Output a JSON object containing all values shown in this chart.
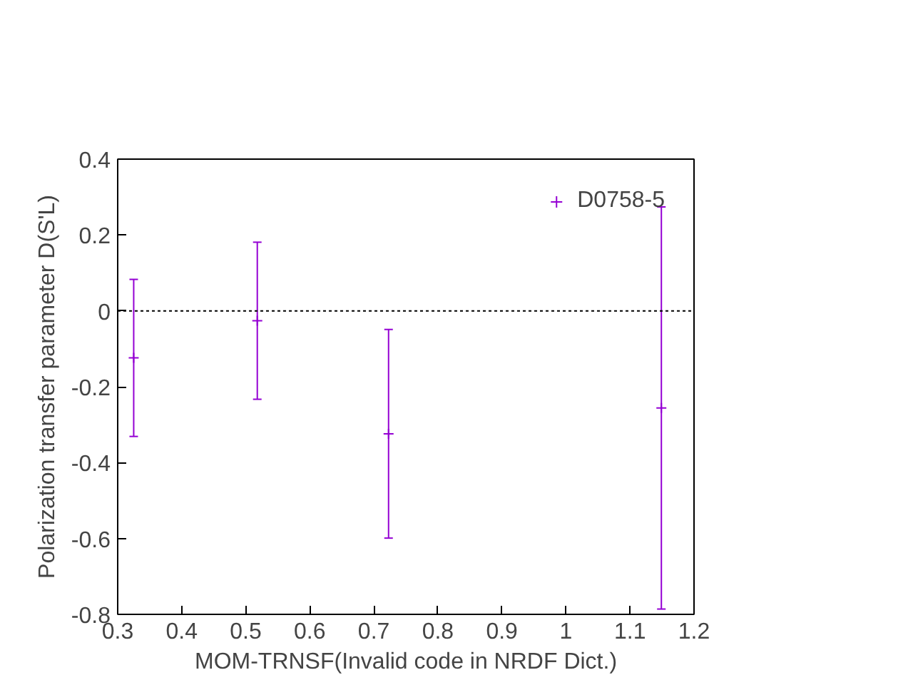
{
  "chart_data": {
    "type": "scatter",
    "xlabel": "MOM-TRNSF(Invalid code in NRDF Dict.)",
    "ylabel": "Polarization transfer parameter D(S'L)",
    "xlim": [
      0.3,
      1.2
    ],
    "xticks": [
      0.3,
      0.4,
      0.5,
      0.6,
      0.7,
      0.8,
      0.9,
      1,
      1.1,
      1.2
    ],
    "ylim": [
      -0.8,
      0.4
    ],
    "yticks": [
      -0.8,
      -0.6,
      -0.4,
      -0.2,
      0,
      0.2,
      0.4
    ],
    "grid": false,
    "legend": "top right",
    "marker": "cross",
    "ref_lines": [
      {
        "axis": "y",
        "value": 0,
        "color": "#000000",
        "line_style": "dotted"
      }
    ],
    "series": [
      {
        "name": "D0758-5",
        "color": "#9400d3",
        "x": [
          0.325,
          0.518,
          0.723,
          1.149
        ],
        "values": [
          -0.124,
          -0.026,
          -0.324,
          -0.256
        ],
        "errors": [
          0.207,
          0.207,
          0.275,
          0.53
        ]
      }
    ]
  }
}
